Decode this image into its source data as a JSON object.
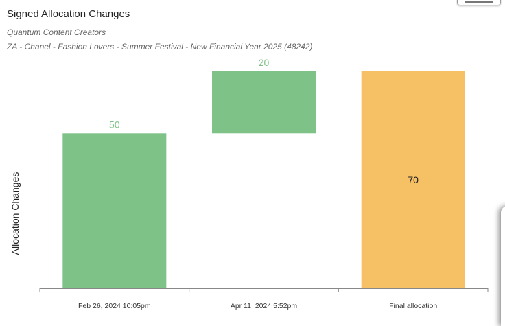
{
  "header": {
    "title": "Signed Allocation Changes",
    "client": "Quantum Content Creators",
    "campaign": "ZA - Chanel - Fashion Lovers - Summer Festival - New Financial Year 2025 (48242)"
  },
  "chart_data": {
    "type": "bar",
    "subtype": "waterfall",
    "title": "Signed Allocation Changes",
    "xlabel": "",
    "ylabel": "Allocation Changes",
    "categories": [
      "Feb 26, 2024 10:05pm",
      "Apr 11, 2024 5:52pm",
      "Final allocation"
    ],
    "values": [
      50,
      20,
      70
    ],
    "data_labels": [
      "50",
      "20",
      "70"
    ],
    "cumulative_start": [
      0,
      50,
      0
    ],
    "cumulative_end": [
      50,
      70,
      70
    ],
    "is_total": [
      false,
      false,
      true
    ],
    "ylim": [
      0,
      70
    ],
    "grid": false,
    "colors": {
      "increase": "#7fc287",
      "increase_label": "#7fc287",
      "total": "#f6c065",
      "total_label": "#222222",
      "axis": "#888888"
    }
  }
}
